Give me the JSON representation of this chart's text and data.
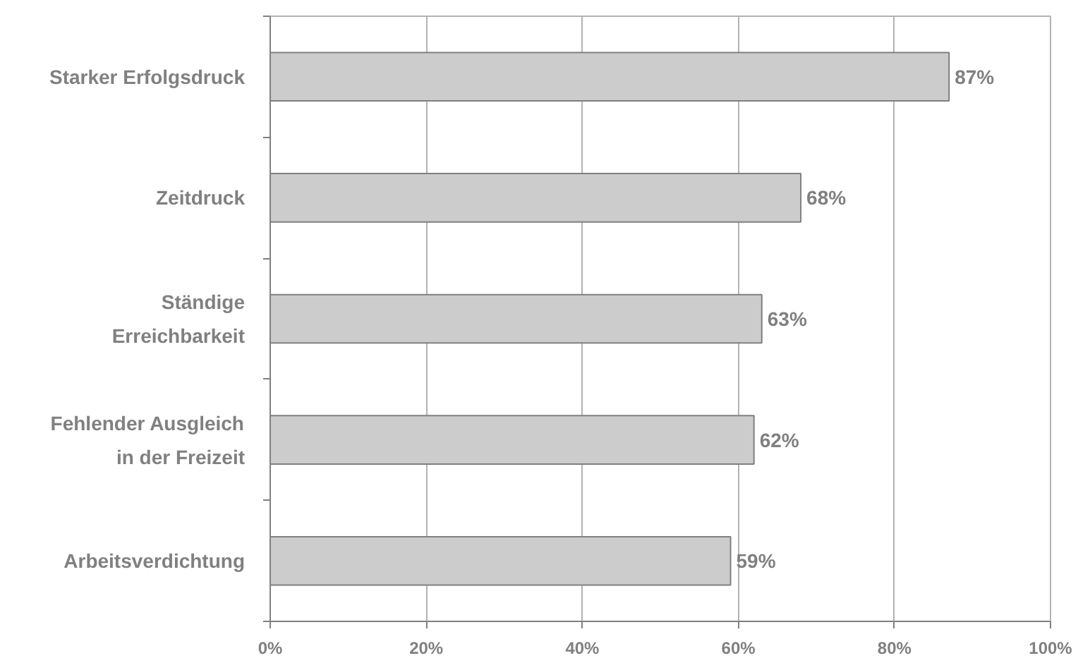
{
  "chart_data": {
    "type": "bar",
    "orientation": "horizontal",
    "categories": [
      "Starker Erfolgsdruck",
      "Zeitdruck",
      "Ständige\nErreichbarkeit",
      "Fehlender Ausgleich\nin der Freizeit",
      "Arbeitsverdichtung"
    ],
    "values": [
      87,
      68,
      63,
      62,
      59
    ],
    "color": "#cccccc",
    "value_labels": [
      "87%",
      "68%",
      "63%",
      "62%",
      "59%"
    ],
    "xlim": [
      0,
      100
    ],
    "xticks": [
      {
        "value": 0,
        "label": "0%"
      },
      {
        "value": 20,
        "label": "20%"
      },
      {
        "value": 40,
        "label": "40%"
      },
      {
        "value": 60,
        "label": "60%"
      },
      {
        "value": 80,
        "label": "80%"
      },
      {
        "value": 100,
        "label": "100%"
      }
    ],
    "grid": "x"
  }
}
